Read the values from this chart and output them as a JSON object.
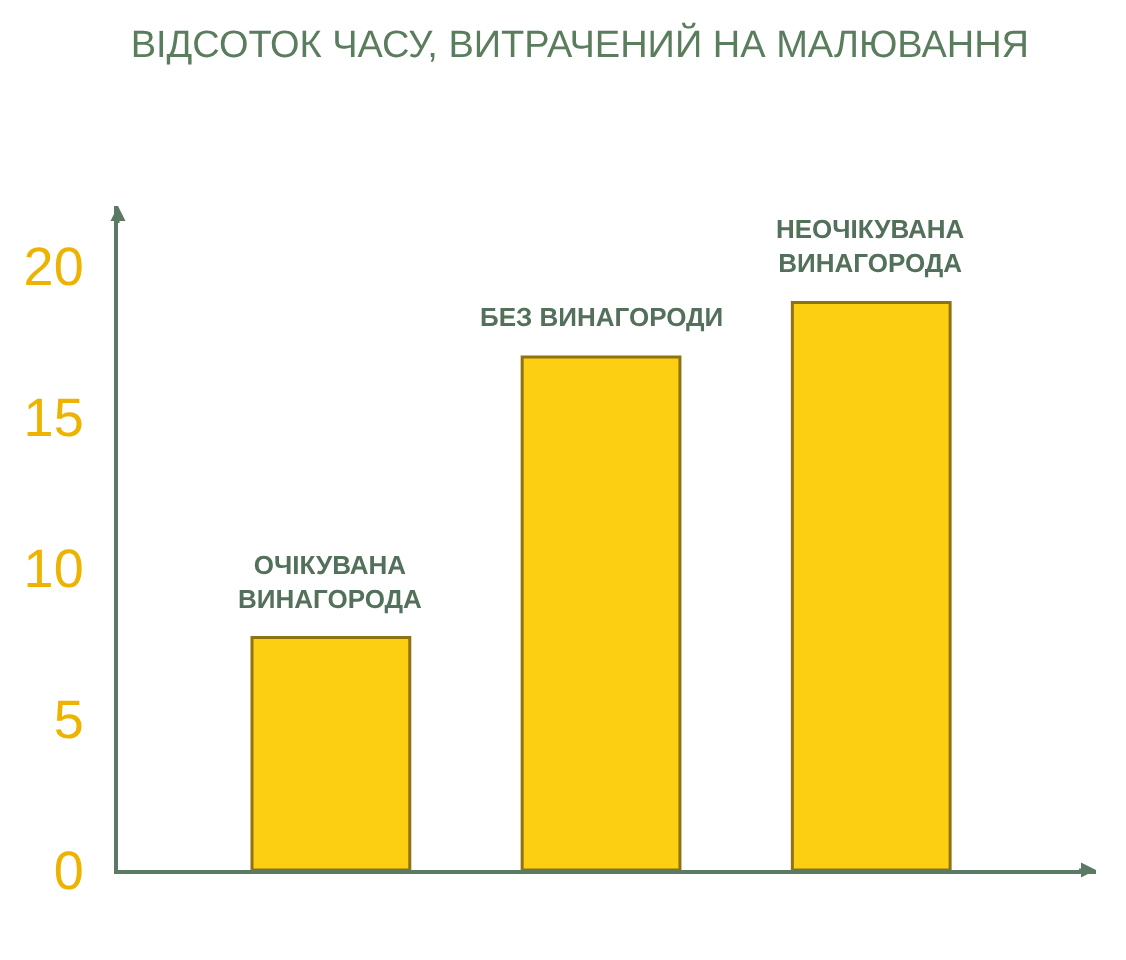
{
  "chart_data": {
    "type": "bar",
    "title": "ВІДСОТОК ЧАСУ, ВИТРАЧЕНИЙ НА МАЛЮВАННЯ",
    "categories": [
      "ОЧІКУВАНА\nВИНАГОРОДА",
      "БЕЗ ВИНАГОРОДИ",
      "НЕОЧІКУВАНА\nВИНАГОРОДА"
    ],
    "values": [
      7.7,
      17.0,
      18.8
    ],
    "color": "#fccf12",
    "ylim": [
      0,
      22
    ],
    "yticks": [
      0,
      5,
      10,
      15,
      20
    ]
  }
}
